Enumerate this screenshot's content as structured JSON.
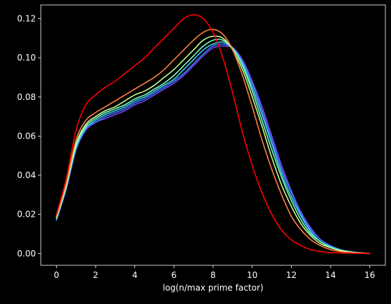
{
  "chart_data": {
    "type": "line",
    "title": "",
    "xlabel": "log(n/max prime factor)",
    "ylabel": "",
    "xlim": [
      -0.8,
      16.8
    ],
    "ylim": [
      -0.006,
      0.127
    ],
    "x_ticks": [
      0,
      2,
      4,
      6,
      8,
      10,
      12,
      14,
      16
    ],
    "y_ticks": [
      0.0,
      0.02,
      0.04,
      0.06,
      0.08,
      0.1,
      0.12
    ],
    "x_tick_labels": [
      "0",
      "2",
      "4",
      "6",
      "8",
      "10",
      "12",
      "14",
      "16"
    ],
    "y_tick_labels": [
      "0.00",
      "0.02",
      "0.04",
      "0.06",
      "0.08",
      "0.10",
      "0.12"
    ],
    "grid": false,
    "background": "#000000",
    "x": [
      0,
      0.5,
      1,
      1.5,
      2,
      2.5,
      3,
      3.5,
      4,
      4.5,
      5,
      5.5,
      6,
      6.5,
      7,
      7.5,
      8,
      8.5,
      9,
      9.5,
      10,
      10.5,
      11,
      11.5,
      12,
      12.5,
      13,
      13.5,
      14,
      14.5,
      15,
      15.5,
      16
    ],
    "series": [
      {
        "color": "#ff0000",
        "values": [
          0.02,
          0.038,
          0.063,
          0.076,
          0.081,
          0.085,
          0.088,
          0.092,
          0.096,
          0.1,
          0.105,
          0.11,
          0.115,
          0.12,
          0.122,
          0.12,
          0.113,
          0.1,
          0.082,
          0.062,
          0.045,
          0.031,
          0.02,
          0.012,
          0.007,
          0.004,
          0.002,
          0.001,
          0.0005,
          0.0003,
          0.0002,
          0.0001,
          0.0
        ]
      },
      {
        "color": "#ff8040",
        "values": [
          0.019,
          0.036,
          0.058,
          0.068,
          0.072,
          0.075,
          0.078,
          0.081,
          0.084,
          0.087,
          0.09,
          0.094,
          0.099,
          0.104,
          0.109,
          0.113,
          0.1145,
          0.112,
          0.104,
          0.091,
          0.075,
          0.058,
          0.043,
          0.03,
          0.019,
          0.012,
          0.007,
          0.004,
          0.002,
          0.001,
          0.0005,
          0.0002,
          0.0
        ]
      },
      {
        "color": "#c0ff90",
        "values": [
          0.018,
          0.035,
          0.056,
          0.066,
          0.07,
          0.073,
          0.075,
          0.078,
          0.081,
          0.083,
          0.086,
          0.09,
          0.094,
          0.099,
          0.104,
          0.109,
          0.111,
          0.11,
          0.104,
          0.094,
          0.08,
          0.065,
          0.049,
          0.035,
          0.024,
          0.015,
          0.009,
          0.005,
          0.003,
          0.0015,
          0.0007,
          0.0003,
          0.0
        ]
      },
      {
        "color": "#80ffc0",
        "values": [
          0.018,
          0.034,
          0.055,
          0.065,
          0.069,
          0.072,
          0.074,
          0.076,
          0.079,
          0.081,
          0.084,
          0.087,
          0.091,
          0.096,
          0.101,
          0.106,
          0.109,
          0.109,
          0.105,
          0.096,
          0.083,
          0.068,
          0.053,
          0.039,
          0.027,
          0.017,
          0.01,
          0.006,
          0.003,
          0.0017,
          0.0008,
          0.0003,
          0.0
        ]
      },
      {
        "color": "#40d0f0",
        "values": [
          0.018,
          0.034,
          0.054,
          0.064,
          0.068,
          0.071,
          0.073,
          0.075,
          0.078,
          0.08,
          0.083,
          0.086,
          0.089,
          0.094,
          0.099,
          0.104,
          0.107,
          0.108,
          0.105,
          0.097,
          0.085,
          0.071,
          0.056,
          0.041,
          0.029,
          0.019,
          0.011,
          0.006,
          0.0035,
          0.0018,
          0.0009,
          0.0004,
          0.0
        ]
      },
      {
        "color": "#3080ff",
        "values": [
          0.017,
          0.033,
          0.053,
          0.064,
          0.067,
          0.07,
          0.072,
          0.074,
          0.077,
          0.079,
          0.082,
          0.085,
          0.088,
          0.092,
          0.097,
          0.102,
          0.106,
          0.107,
          0.105,
          0.098,
          0.087,
          0.073,
          0.058,
          0.043,
          0.031,
          0.02,
          0.012,
          0.007,
          0.004,
          0.002,
          0.001,
          0.0004,
          0.0
        ]
      },
      {
        "color": "#8040ff",
        "values": [
          0.017,
          0.033,
          0.053,
          0.063,
          0.067,
          0.069,
          0.071,
          0.073,
          0.076,
          0.078,
          0.081,
          0.084,
          0.087,
          0.091,
          0.096,
          0.101,
          0.105,
          0.106,
          0.105,
          0.099,
          0.088,
          0.075,
          0.06,
          0.045,
          0.032,
          0.021,
          0.013,
          0.007,
          0.004,
          0.002,
          0.001,
          0.0004,
          0.0
        ]
      }
    ]
  }
}
